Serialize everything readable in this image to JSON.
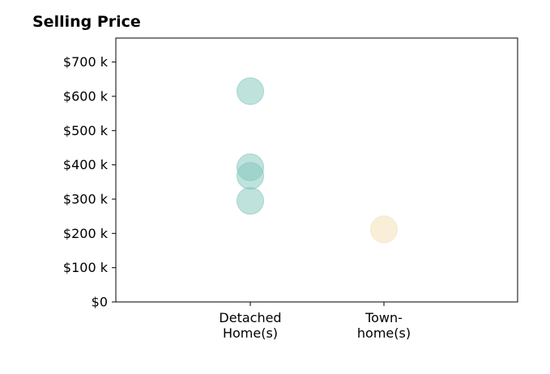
{
  "chart_data": {
    "type": "scatter",
    "title": "Selling Price",
    "xlabel": "",
    "ylabel": "",
    "categories": [
      [
        "Detached",
        "Home(s)"
      ],
      [
        "Town-",
        "home(s)"
      ]
    ],
    "ylim": [
      0,
      770000
    ],
    "yticks": [
      {
        "value": 0,
        "label": "$0"
      },
      {
        "value": 100000,
        "label": "$100 k"
      },
      {
        "value": 200000,
        "label": "$200 k"
      },
      {
        "value": 300000,
        "label": "$300 k"
      },
      {
        "value": 400000,
        "label": "$400 k"
      },
      {
        "value": 500000,
        "label": "$500 k"
      },
      {
        "value": 600000,
        "label": "$600 k"
      },
      {
        "value": 700000,
        "label": "$700 k"
      }
    ],
    "series": [
      {
        "category_index": 0,
        "color": "#7fc5bb",
        "values": [
          615000,
          393000,
          368000,
          295000
        ]
      },
      {
        "category_index": 1,
        "color": "#f3ddb2",
        "values": [
          212000
        ]
      }
    ],
    "grid": false,
    "legend": "none"
  }
}
